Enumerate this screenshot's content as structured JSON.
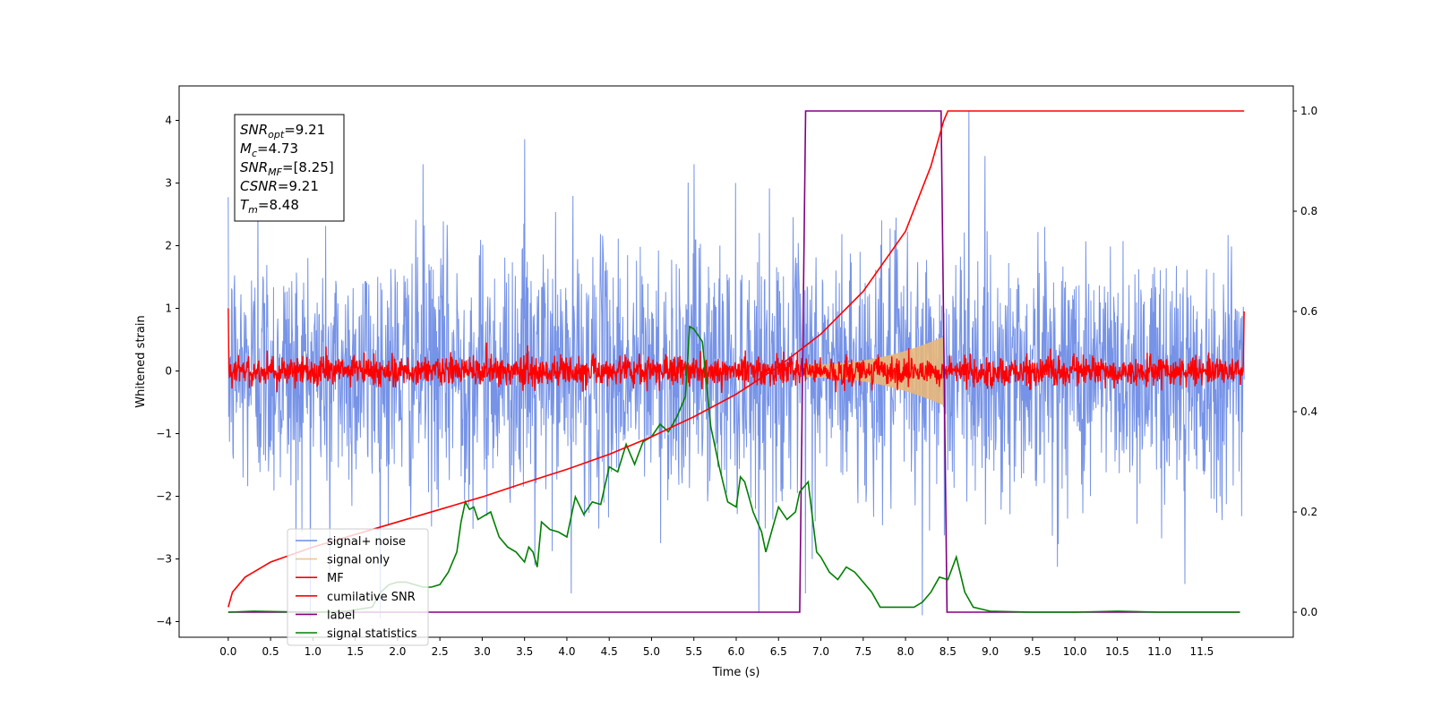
{
  "chart_data": {
    "type": "line",
    "xlabel": "Time (s)",
    "ylabel": "Whitened strain",
    "xlim": [
      -0.58,
      12.58
    ],
    "ylim": [
      -4.25,
      4.55
    ],
    "y2lim": [
      -0.05,
      1.05
    ],
    "x_ticks": [
      0.0,
      0.5,
      1.0,
      1.5,
      2.0,
      2.5,
      3.0,
      3.5,
      4.0,
      4.5,
      5.0,
      5.5,
      6.0,
      6.5,
      7.0,
      7.5,
      8.0,
      8.5,
      9.0,
      9.5,
      10.0,
      10.5,
      11.0,
      11.5
    ],
    "x_tick_labels": [
      "0.0",
      "0.5",
      "1.0",
      "1.5",
      "2.0",
      "2.5",
      "3.0",
      "3.5",
      "4.0",
      "4.5",
      "5.0",
      "5.5",
      "6.0",
      "6.5",
      "7.0",
      "7.5",
      "8.0",
      "8.5",
      "9.0",
      "9.5",
      "10.0",
      "10.5",
      "11.0",
      "11.5"
    ],
    "y_ticks": [
      -4,
      -3,
      -2,
      -1,
      0,
      1,
      2,
      3,
      4
    ],
    "y_tick_labels": [
      "−4",
      "−3",
      "−2",
      "−1",
      "0",
      "1",
      "2",
      "3",
      "4"
    ],
    "y2_ticks": [
      0.0,
      0.2,
      0.4,
      0.6,
      0.8,
      1.0
    ],
    "y2_tick_labels": [
      "0.0",
      "0.2",
      "0.4",
      "0.6",
      "0.8",
      "1.0"
    ],
    "grid": false,
    "legend_position": "lower-left",
    "series": [
      {
        "name": "signal+ noise",
        "axis": "left",
        "color": "#6f8de6",
        "kind": "noise",
        "duration": 12.0,
        "band_sigma": 1.0,
        "sample_peaks": [
          [
            0.35,
            2.8
          ],
          [
            0.8,
            -3.3
          ],
          [
            1.2,
            -3.35
          ],
          [
            3.5,
            3.7
          ],
          [
            4.05,
            -3.55
          ],
          [
            6.82,
            -3.55
          ],
          [
            8.2,
            -3.9
          ],
          [
            8.75,
            4.15
          ],
          [
            11.3,
            -3.4
          ],
          [
            3.62,
            -3.1
          ],
          [
            5.5,
            3.3
          ],
          [
            2.3,
            3.3
          ]
        ]
      },
      {
        "name": "signal only",
        "axis": "left",
        "color": "#e8b77a",
        "kind": "chirp",
        "start": 6.8,
        "end": 8.45,
        "start_amplitude": 0.1,
        "end_amplitude": 0.55
      },
      {
        "name": "MF",
        "axis": "left",
        "color": "#ff0000",
        "kind": "noise",
        "duration": 12.0,
        "band_sigma": 0.12,
        "edge_values": [
          [
            0.0,
            1.0
          ],
          [
            12.0,
            0.95
          ]
        ]
      },
      {
        "name": "cumilative SNR",
        "axis": "right",
        "color": "#ff0000",
        "kind": "curve",
        "x": [
          0.0,
          0.05,
          0.2,
          0.5,
          1.0,
          1.5,
          2.0,
          2.5,
          3.0,
          3.5,
          4.0,
          4.5,
          5.0,
          5.5,
          6.0,
          6.5,
          7.0,
          7.5,
          8.0,
          8.3,
          8.45,
          8.5,
          12.0
        ],
        "y": [
          0.01,
          0.04,
          0.07,
          0.1,
          0.13,
          0.155,
          0.18,
          0.205,
          0.23,
          0.258,
          0.285,
          0.315,
          0.35,
          0.39,
          0.435,
          0.49,
          0.555,
          0.64,
          0.76,
          0.89,
          0.98,
          1.0,
          1.0
        ]
      },
      {
        "name": "label",
        "axis": "right",
        "color": "#800080",
        "kind": "curve",
        "x": [
          0.0,
          6.75,
          6.82,
          8.42,
          8.49,
          11.95
        ],
        "y": [
          0.0,
          0.0,
          1.0,
          1.0,
          0.0,
          0.0
        ]
      },
      {
        "name": "signal statistics",
        "axis": "right",
        "color": "#008000",
        "kind": "curve",
        "x": [
          0.0,
          0.3,
          0.6,
          1.0,
          1.4,
          1.7,
          1.8,
          1.9,
          2.0,
          2.1,
          2.2,
          2.3,
          2.4,
          2.5,
          2.6,
          2.7,
          2.75,
          2.8,
          2.85,
          2.9,
          2.95,
          3.0,
          3.1,
          3.2,
          3.3,
          3.4,
          3.5,
          3.55,
          3.6,
          3.65,
          3.7,
          3.8,
          3.9,
          4.0,
          4.1,
          4.2,
          4.3,
          4.4,
          4.5,
          4.6,
          4.7,
          4.8,
          4.9,
          5.0,
          5.1,
          5.2,
          5.3,
          5.4,
          5.45,
          5.5,
          5.6,
          5.7,
          5.8,
          5.9,
          6.0,
          6.05,
          6.1,
          6.2,
          6.3,
          6.35,
          6.4,
          6.5,
          6.6,
          6.7,
          6.75,
          6.8,
          6.85,
          6.95,
          7.0,
          7.1,
          7.2,
          7.3,
          7.4,
          7.5,
          7.6,
          7.7,
          7.8,
          7.9,
          8.0,
          8.1,
          8.2,
          8.3,
          8.35,
          8.4,
          8.5,
          8.6,
          8.7,
          8.8,
          9.0,
          9.5,
          10.0,
          10.5,
          11.0,
          11.5,
          11.95
        ],
        "y": [
          0.0,
          0.002,
          0.001,
          0.0,
          0.002,
          0.01,
          0.04,
          0.055,
          0.06,
          0.06,
          0.055,
          0.05,
          0.05,
          0.055,
          0.08,
          0.12,
          0.18,
          0.22,
          0.205,
          0.21,
          0.185,
          0.19,
          0.2,
          0.15,
          0.13,
          0.12,
          0.1,
          0.13,
          0.12,
          0.09,
          0.18,
          0.165,
          0.16,
          0.15,
          0.23,
          0.195,
          0.22,
          0.215,
          0.29,
          0.28,
          0.335,
          0.295,
          0.34,
          0.35,
          0.375,
          0.36,
          0.39,
          0.43,
          0.57,
          0.565,
          0.54,
          0.37,
          0.29,
          0.22,
          0.21,
          0.27,
          0.26,
          0.2,
          0.16,
          0.12,
          0.15,
          0.21,
          0.185,
          0.2,
          0.24,
          0.25,
          0.26,
          0.12,
          0.11,
          0.08,
          0.065,
          0.09,
          0.08,
          0.06,
          0.04,
          0.01,
          0.01,
          0.01,
          0.01,
          0.01,
          0.02,
          0.04,
          0.055,
          0.07,
          0.065,
          0.11,
          0.04,
          0.01,
          0.002,
          0.0,
          0.0,
          0.002,
          0.0,
          0.0,
          0.0
        ]
      }
    ],
    "annotation": {
      "lines": [
        {
          "var": "SNR",
          "sub": "opt",
          "value": "=9.21"
        },
        {
          "var": "M",
          "sub": "c",
          "value": "=4.73"
        },
        {
          "var": "SNR",
          "sub": "MF",
          "value": "=[8.25]"
        },
        {
          "var": "CSNR",
          "sub": "",
          "value": "=9.21"
        },
        {
          "var": "T",
          "sub": "m",
          "value": "=8.48"
        }
      ]
    }
  }
}
